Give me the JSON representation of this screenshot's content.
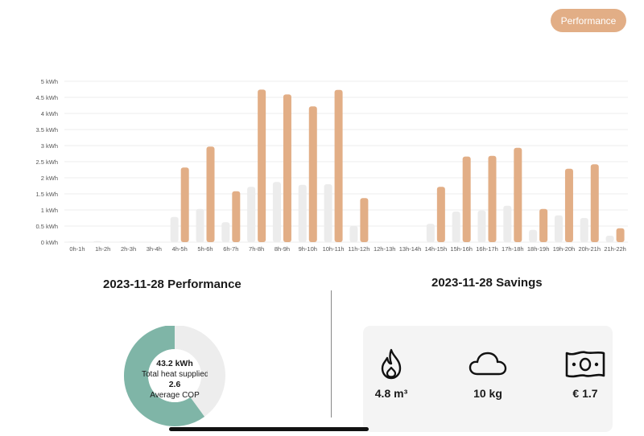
{
  "header": {
    "performance_label": "Performance"
  },
  "chart_data": {
    "type": "bar",
    "categories": [
      "0h-1h",
      "1h-2h",
      "2h-3h",
      "3h-4h",
      "4h-5h",
      "5h-6h",
      "6h-7h",
      "7h-8h",
      "8h-9h",
      "9h-10h",
      "10h-11h",
      "11h-12h",
      "12h-13h",
      "13h-14h",
      "14h-15h",
      "15h-16h",
      "16h-17h",
      "17h-18h",
      "18h-19h",
      "19h-20h",
      "20h-21h",
      "21h-22h"
    ],
    "series": [
      {
        "values": [
          0.02,
          0.03,
          0.02,
          0.0,
          0.78,
          1.03,
          0.62,
          1.72,
          1.87,
          1.78,
          1.8,
          0.5,
          0.0,
          0.0,
          0.57,
          0.95,
          0.98,
          1.13,
          0.38,
          0.83,
          0.75,
          0.2
        ],
        "color": "#ececec"
      },
      {
        "values": [
          0.0,
          0.0,
          0.0,
          0.0,
          2.32,
          2.97,
          1.58,
          4.74,
          4.59,
          4.22,
          4.73,
          1.37,
          0.0,
          0.0,
          1.72,
          2.66,
          2.68,
          2.93,
          1.03,
          2.28,
          2.42,
          0.43
        ],
        "color": "#e2ae86"
      }
    ],
    "yticks": [
      "0 kWh",
      "0.5 kWh",
      "1 kWh",
      "1.5 kWh",
      "2 kWh",
      "2.5 kWh",
      "3 kWh",
      "3.5 kWh",
      "4 kWh",
      "4.5 kWh",
      "5 kWh"
    ],
    "ylim": [
      0,
      5
    ],
    "grid": true
  },
  "performance": {
    "title": "2023-11-28 Performance",
    "heat_value": "43.2 kWh",
    "heat_label": "Total heat supplied",
    "cop_value": "2.6",
    "cop_label": "Average COP",
    "donut_fraction": 0.6,
    "donut_fill_color": "#7fb5a7",
    "donut_rest_color": "#ededed"
  },
  "savings": {
    "title": "2023-11-28 Savings",
    "items": [
      {
        "icon": "flame-icon",
        "value": "4.8 m³"
      },
      {
        "icon": "cloud-icon",
        "value": "10 kg"
      },
      {
        "icon": "banknote-icon",
        "value": "€ 1.7"
      }
    ]
  },
  "colors": {
    "accent": "#e2ae86",
    "secondary_bar": "#ececec",
    "donut_green": "#7fb5a7"
  }
}
